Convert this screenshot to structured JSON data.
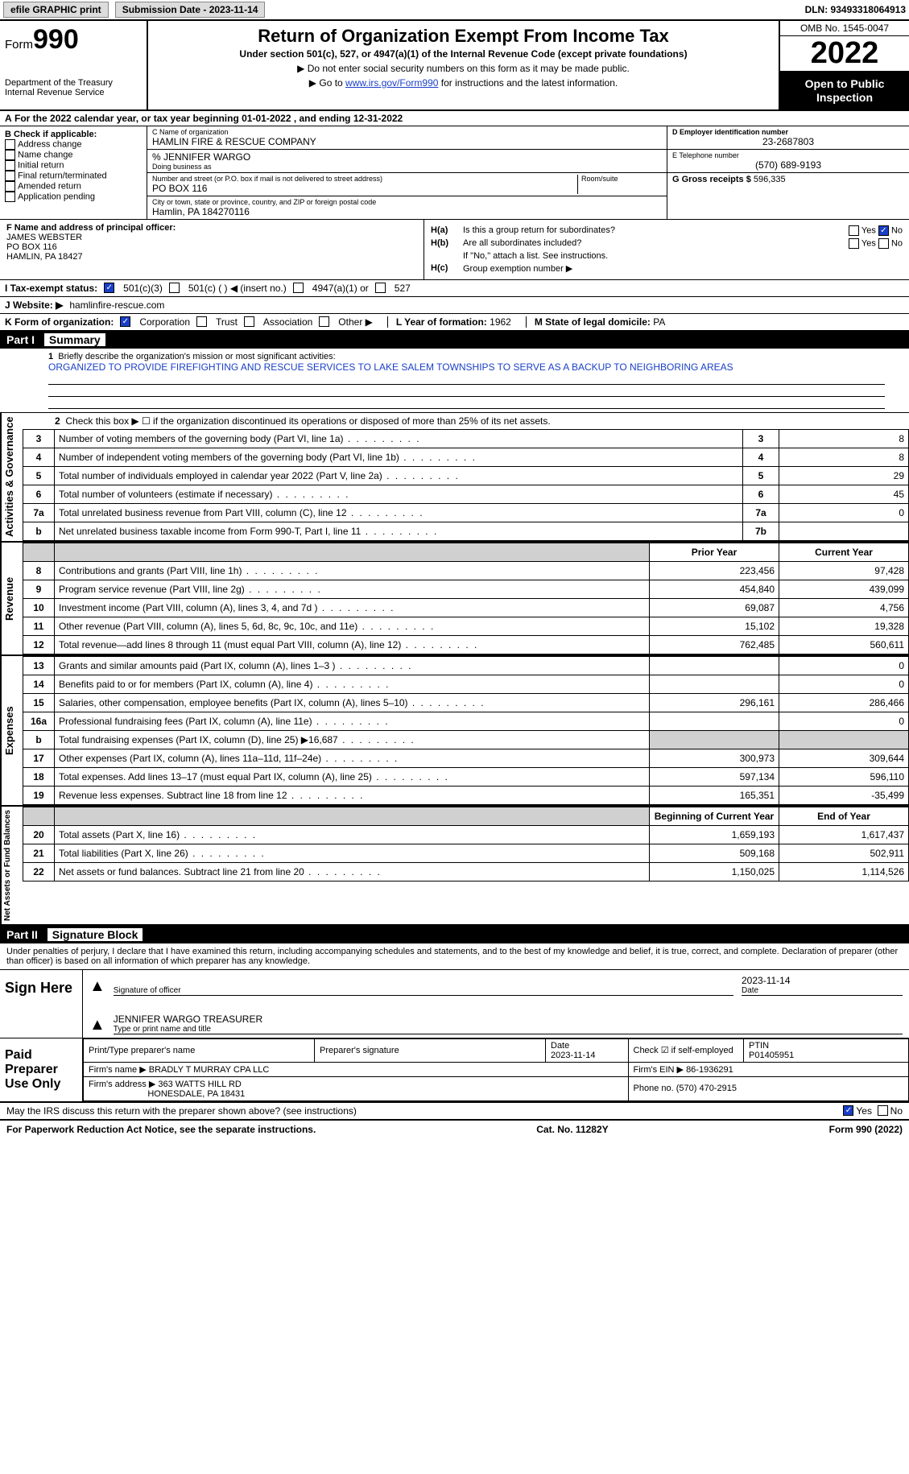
{
  "topbar": {
    "efile": "efile GRAPHIC print",
    "submission_label": "Submission Date - 2023-11-14",
    "dln": "DLN: 93493318064913"
  },
  "header": {
    "form_word": "Form",
    "form_num": "990",
    "dept": "Department of the Treasury",
    "irs": "Internal Revenue Service",
    "title": "Return of Organization Exempt From Income Tax",
    "subtitle": "Under section 501(c), 527, or 4947(a)(1) of the Internal Revenue Code (except private foundations)",
    "note1": "Do not enter social security numbers on this form as it may be made public.",
    "note2_pre": "Go to ",
    "note2_link": "www.irs.gov/Form990",
    "note2_post": " for instructions and the latest information.",
    "omb": "OMB No. 1545-0047",
    "year": "2022",
    "open": "Open to Public Inspection"
  },
  "period": {
    "line": "For the 2022 calendar year, or tax year beginning 01-01-2022    , and ending 12-31-2022"
  },
  "boxB": {
    "title": "B Check if applicable:",
    "opts": [
      "Address change",
      "Name change",
      "Initial return",
      "Final return/terminated",
      "Amended return",
      "Application pending"
    ]
  },
  "boxC": {
    "name_lab": "C Name of organization",
    "name": "HAMLIN FIRE & RESCUE COMPANY",
    "care_of": "% JENNIFER WARGO",
    "dba_lab": "Doing business as",
    "street_lab": "Number and street (or P.O. box if mail is not delivered to street address)",
    "room_lab": "Room/suite",
    "street": "PO BOX 116",
    "city_lab": "City or town, state or province, country, and ZIP or foreign postal code",
    "city": "Hamlin, PA  184270116"
  },
  "boxD": {
    "lab": "D Employer identification number",
    "val": "23-2687803"
  },
  "boxE": {
    "lab": "E Telephone number",
    "val": "(570) 689-9193"
  },
  "boxG": {
    "lab": "G Gross receipts $",
    "val": "596,335"
  },
  "boxF": {
    "lab": "F  Name and address of principal officer:",
    "name": "JAMES WEBSTER",
    "addr1": "PO BOX 116",
    "addr2": "HAMLIN, PA  18427"
  },
  "boxH": {
    "ha_lab": "H(a)",
    "ha_q": "Is this a group return for subordinates?",
    "hb_lab": "H(b)",
    "hb_q": "Are all subordinates included?",
    "hb_note": "If \"No,\" attach a list. See instructions.",
    "hc_lab": "H(c)",
    "hc_q": "Group exemption number ▶",
    "yes": "Yes",
    "no": "No"
  },
  "taxstatus": {
    "lab": "I   Tax-exempt status:",
    "o1": "501(c)(3)",
    "o2": "501(c) (  ) ◀ (insert no.)",
    "o3": "4947(a)(1) or",
    "o4": "527"
  },
  "website": {
    "lab": "J   Website: ▶",
    "val": "hamlinfire-rescue.com"
  },
  "korg": {
    "lab": "K Form of organization:",
    "corp": "Corporation",
    "trust": "Trust",
    "assoc": "Association",
    "other": "Other ▶",
    "year_lab": "L Year of formation:",
    "year": "1962",
    "state_lab": "M State of legal domicile:",
    "state": "PA"
  },
  "part1": {
    "hdr": "Part I",
    "title": "Summary",
    "l1_lab": "1",
    "l1": "Briefly describe the organization's mission or most significant activities:",
    "l1_val": "ORGANIZED TO PROVIDE FIREFIGHTING AND RESCUE SERVICES TO LAKE SALEM TOWNSHIPS TO SERVE AS A BACKUP TO NEIGHBORING AREAS",
    "l2": "Check this box ▶ ☐  if the organization discontinued its operations or disposed of more than 25% of its net assets.",
    "side_ag": "Activities & Governance",
    "side_rev": "Revenue",
    "side_exp": "Expenses",
    "side_na": "Net Assets or Fund Balances",
    "rows_ag": [
      {
        "n": "3",
        "d": "Number of voting members of the governing body (Part VI, line 1a)",
        "box": "3",
        "v": "8"
      },
      {
        "n": "4",
        "d": "Number of independent voting members of the governing body (Part VI, line 1b)",
        "box": "4",
        "v": "8"
      },
      {
        "n": "5",
        "d": "Total number of individuals employed in calendar year 2022 (Part V, line 2a)",
        "box": "5",
        "v": "29"
      },
      {
        "n": "6",
        "d": "Total number of volunteers (estimate if necessary)",
        "box": "6",
        "v": "45"
      },
      {
        "n": "7a",
        "d": "Total unrelated business revenue from Part VIII, column (C), line 12",
        "box": "7a",
        "v": "0"
      },
      {
        "n": "b",
        "d": "Net unrelated business taxable income from Form 990-T, Part I, line 11",
        "box": "7b",
        "v": ""
      }
    ],
    "hdr_prior": "Prior Year",
    "hdr_curr": "Current Year",
    "rows_rev": [
      {
        "n": "8",
        "d": "Contributions and grants (Part VIII, line 1h)",
        "p": "223,456",
        "c": "97,428"
      },
      {
        "n": "9",
        "d": "Program service revenue (Part VIII, line 2g)",
        "p": "454,840",
        "c": "439,099"
      },
      {
        "n": "10",
        "d": "Investment income (Part VIII, column (A), lines 3, 4, and 7d )",
        "p": "69,087",
        "c": "4,756"
      },
      {
        "n": "11",
        "d": "Other revenue (Part VIII, column (A), lines 5, 6d, 8c, 9c, 10c, and 11e)",
        "p": "15,102",
        "c": "19,328"
      },
      {
        "n": "12",
        "d": "Total revenue—add lines 8 through 11 (must equal Part VIII, column (A), line 12)",
        "p": "762,485",
        "c": "560,611"
      }
    ],
    "rows_exp": [
      {
        "n": "13",
        "d": "Grants and similar amounts paid (Part IX, column (A), lines 1–3 )",
        "p": "",
        "c": "0"
      },
      {
        "n": "14",
        "d": "Benefits paid to or for members (Part IX, column (A), line 4)",
        "p": "",
        "c": "0"
      },
      {
        "n": "15",
        "d": "Salaries, other compensation, employee benefits (Part IX, column (A), lines 5–10)",
        "p": "296,161",
        "c": "286,466"
      },
      {
        "n": "16a",
        "d": "Professional fundraising fees (Part IX, column (A), line 11e)",
        "p": "",
        "c": "0"
      },
      {
        "n": "b",
        "d": "Total fundraising expenses (Part IX, column (D), line 25) ▶16,687",
        "p": "shade",
        "c": "shade"
      },
      {
        "n": "17",
        "d": "Other expenses (Part IX, column (A), lines 11a–11d, 11f–24e)",
        "p": "300,973",
        "c": "309,644"
      },
      {
        "n": "18",
        "d": "Total expenses. Add lines 13–17 (must equal Part IX, column (A), line 25)",
        "p": "597,134",
        "c": "596,110"
      },
      {
        "n": "19",
        "d": "Revenue less expenses. Subtract line 18 from line 12",
        "p": "165,351",
        "c": "-35,499"
      }
    ],
    "hdr_beg": "Beginning of Current Year",
    "hdr_end": "End of Year",
    "rows_na": [
      {
        "n": "20",
        "d": "Total assets (Part X, line 16)",
        "p": "1,659,193",
        "c": "1,617,437"
      },
      {
        "n": "21",
        "d": "Total liabilities (Part X, line 26)",
        "p": "509,168",
        "c": "502,911"
      },
      {
        "n": "22",
        "d": "Net assets or fund balances. Subtract line 21 from line 20",
        "p": "1,150,025",
        "c": "1,114,526"
      }
    ]
  },
  "part2": {
    "hdr": "Part II",
    "title": "Signature Block",
    "perjury": "Under penalties of perjury, I declare that I have examined this return, including accompanying schedules and statements, and to the best of my knowledge and belief, it is true, correct, and complete. Declaration of preparer (other than officer) is based on all information of which preparer has any knowledge.",
    "sign_here": "Sign Here",
    "sig_officer": "Signature of officer",
    "sig_date": "2023-11-14",
    "date_lab": "Date",
    "typed": "JENNIFER WARGO  TREASURER",
    "typed_lab": "Type or print name and title",
    "paid": "Paid Preparer Use Only",
    "pt_name_lab": "Print/Type preparer's name",
    "pt_sig_lab": "Preparer's signature",
    "pt_date_lab": "Date",
    "pt_date": "2023-11-14",
    "pt_check_lab": "Check ☑ if self-employed",
    "ptin_lab": "PTIN",
    "ptin": "P01405951",
    "firm_name_lab": "Firm's name    ▶",
    "firm_name": "BRADLY T MURRAY CPA LLC",
    "firm_ein_lab": "Firm's EIN ▶",
    "firm_ein": "86-1936291",
    "firm_addr_lab": "Firm's address ▶",
    "firm_addr1": "363 WATTS HILL RD",
    "firm_addr2": "HONESDALE, PA  18431",
    "phone_lab": "Phone no.",
    "phone": "(570) 470-2915",
    "discuss": "May the IRS discuss this return with the preparer shown above? (see instructions)",
    "yes": "Yes",
    "no": "No"
  },
  "footer": {
    "left": "For Paperwork Reduction Act Notice, see the separate instructions.",
    "mid": "Cat. No. 11282Y",
    "right": "Form 990 (2022)"
  }
}
